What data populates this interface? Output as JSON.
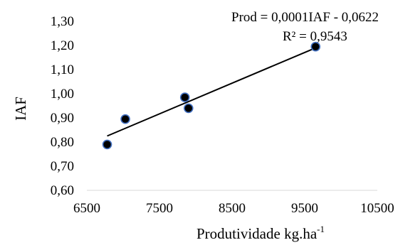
{
  "chart_data": {
    "type": "scatter",
    "xlabel": "Produtividade kg.ha",
    "xlabel_superscript": "-1",
    "ylabel": "IAF",
    "xlim": [
      6500,
      10500
    ],
    "ylim": [
      0.6,
      1.3
    ],
    "x_ticks": [
      6500,
      7500,
      8500,
      9500,
      10500
    ],
    "x_tick_labels": [
      "6500",
      "7500",
      "8500",
      "9500",
      "10500"
    ],
    "y_ticks": [
      0.6,
      0.7,
      0.8,
      0.9,
      1.0,
      1.1,
      1.2,
      1.3
    ],
    "y_tick_labels": [
      "0,60",
      "0,70",
      "0,80",
      "0,90",
      "1,00",
      "1,10",
      "1,20",
      "1,30"
    ],
    "series": [
      {
        "x": [
          6780,
          7030,
          7850,
          7900,
          9650
        ],
        "y": [
          0.79,
          0.895,
          0.985,
          0.94,
          1.195
        ]
      }
    ],
    "trendline": {
      "type": "linear",
      "x_range": [
        6780,
        9650
      ],
      "y_range": [
        0.825,
        1.19
      ]
    },
    "annotations": {
      "equation": "Prod = 0,0001IAF - 0,0622",
      "r_squared": "R² = 0,9543"
    },
    "grid": false,
    "legend": "none"
  }
}
